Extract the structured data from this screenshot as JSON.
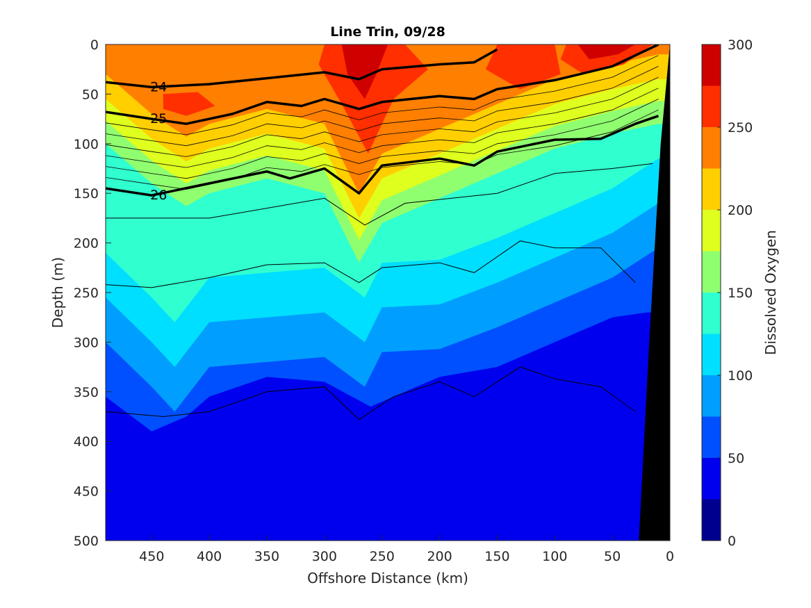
{
  "chart_data": {
    "type": "filled-contour",
    "title": "Line Trin, 09/28",
    "xlabel": "Offshore Distance (km)",
    "ylabel": "Depth (m)",
    "colorbar_label": "Dissolved Oxygen",
    "x_range": [
      490,
      0
    ],
    "x_direction": "reversed",
    "y_range": [
      0,
      500
    ],
    "y_direction": "reversed (depth increases downward)",
    "x_ticks": [
      "450",
      "400",
      "350",
      "300",
      "250",
      "200",
      "150",
      "100",
      "50",
      "0"
    ],
    "y_ticks": [
      "0",
      "50",
      "100",
      "150",
      "200",
      "250",
      "300",
      "350",
      "400",
      "450",
      "500"
    ],
    "colorbar_ticks": [
      "0",
      "50",
      "100",
      "150",
      "200",
      "250",
      "300"
    ],
    "colorbar_range": [
      0,
      300
    ],
    "levels": [
      0,
      25,
      50,
      75,
      100,
      125,
      150,
      175,
      200,
      225,
      250,
      275,
      300
    ],
    "level_colors": [
      "#00008f",
      "#0000ef",
      "#0050ff",
      "#009fff",
      "#00dfff",
      "#30ffcf",
      "#8fff70",
      "#dfff1f",
      "#ffcf00",
      "#ff7f00",
      "#ff2f00",
      "#cf0000"
    ],
    "oxygen_depth_of_200": [
      {
        "x": 490,
        "depth": 55
      },
      {
        "x": 450,
        "depth": 95
      },
      {
        "x": 420,
        "depth": 118
      },
      {
        "x": 400,
        "depth": 105
      },
      {
        "x": 350,
        "depth": 90
      },
      {
        "x": 300,
        "depth": 105
      },
      {
        "x": 270,
        "depth": 175
      },
      {
        "x": 250,
        "depth": 135
      },
      {
        "x": 200,
        "depth": 110
      },
      {
        "x": 150,
        "depth": 85
      },
      {
        "x": 100,
        "depth": 60
      },
      {
        "x": 50,
        "depth": 45
      },
      {
        "x": 10,
        "depth": 35
      }
    ],
    "oxygen_depth_of_100": [
      {
        "x": 490,
        "depth": 255
      },
      {
        "x": 450,
        "depth": 300
      },
      {
        "x": 430,
        "depth": 325
      },
      {
        "x": 400,
        "depth": 280
      },
      {
        "x": 350,
        "depth": 275
      },
      {
        "x": 300,
        "depth": 270
      },
      {
        "x": 265,
        "depth": 300
      },
      {
        "x": 250,
        "depth": 265
      },
      {
        "x": 200,
        "depth": 262
      },
      {
        "x": 150,
        "depth": 240
      },
      {
        "x": 100,
        "depth": 215
      },
      {
        "x": 50,
        "depth": 190
      },
      {
        "x": 10,
        "depth": 160
      }
    ],
    "oxygen_depth_of_50": [
      {
        "x": 490,
        "depth": 355
      },
      {
        "x": 450,
        "depth": 390
      },
      {
        "x": 420,
        "depth": 375
      },
      {
        "x": 400,
        "depth": 355
      },
      {
        "x": 350,
        "depth": 335
      },
      {
        "x": 300,
        "depth": 340
      },
      {
        "x": 260,
        "depth": 365
      },
      {
        "x": 200,
        "depth": 335
      },
      {
        "x": 150,
        "depth": 325
      },
      {
        "x": 100,
        "depth": 300
      },
      {
        "x": 50,
        "depth": 275
      },
      {
        "x": 20,
        "depth": 270
      }
    ],
    "density_isopycnals_labeled": [
      {
        "label": "24",
        "points": [
          {
            "x": 490,
            "depth": 38
          },
          {
            "x": 450,
            "depth": 43
          },
          {
            "x": 400,
            "depth": 40
          },
          {
            "x": 350,
            "depth": 34
          },
          {
            "x": 300,
            "depth": 28
          },
          {
            "x": 270,
            "depth": 35
          },
          {
            "x": 250,
            "depth": 25
          },
          {
            "x": 200,
            "depth": 20
          },
          {
            "x": 170,
            "depth": 18
          },
          {
            "x": 150,
            "depth": 5
          }
        ]
      },
      {
        "label": "25",
        "points": [
          {
            "x": 490,
            "depth": 68
          },
          {
            "x": 450,
            "depth": 75
          },
          {
            "x": 420,
            "depth": 80
          },
          {
            "x": 380,
            "depth": 70
          },
          {
            "x": 350,
            "depth": 58
          },
          {
            "x": 320,
            "depth": 62
          },
          {
            "x": 300,
            "depth": 55
          },
          {
            "x": 270,
            "depth": 65
          },
          {
            "x": 250,
            "depth": 58
          },
          {
            "x": 200,
            "depth": 52
          },
          {
            "x": 170,
            "depth": 55
          },
          {
            "x": 150,
            "depth": 45
          },
          {
            "x": 100,
            "depth": 36
          },
          {
            "x": 50,
            "depth": 22
          },
          {
            "x": 10,
            "depth": 0
          }
        ]
      },
      {
        "label": "26",
        "points": [
          {
            "x": 490,
            "depth": 145
          },
          {
            "x": 450,
            "depth": 152
          },
          {
            "x": 400,
            "depth": 140
          },
          {
            "x": 350,
            "depth": 128
          },
          {
            "x": 330,
            "depth": 135
          },
          {
            "x": 300,
            "depth": 125
          },
          {
            "x": 270,
            "depth": 150
          },
          {
            "x": 250,
            "depth": 122
          },
          {
            "x": 200,
            "depth": 115
          },
          {
            "x": 170,
            "depth": 122
          },
          {
            "x": 150,
            "depth": 108
          },
          {
            "x": 100,
            "depth": 96
          },
          {
            "x": 60,
            "depth": 95
          },
          {
            "x": 30,
            "depth": 80
          },
          {
            "x": 10,
            "depth": 72
          }
        ]
      }
    ],
    "density_isopycnals_thin": [
      [
        {
          "x": 490,
          "depth": 175
        },
        {
          "x": 400,
          "depth": 175
        },
        {
          "x": 350,
          "depth": 165
        },
        {
          "x": 300,
          "depth": 155
        },
        {
          "x": 265,
          "depth": 182
        },
        {
          "x": 230,
          "depth": 160
        },
        {
          "x": 150,
          "depth": 150
        },
        {
          "x": 100,
          "depth": 130
        },
        {
          "x": 50,
          "depth": 125
        },
        {
          "x": 15,
          "depth": 120
        }
      ],
      [
        {
          "x": 490,
          "depth": 242
        },
        {
          "x": 450,
          "depth": 245
        },
        {
          "x": 400,
          "depth": 235
        },
        {
          "x": 350,
          "depth": 222
        },
        {
          "x": 300,
          "depth": 220
        },
        {
          "x": 270,
          "depth": 240
        },
        {
          "x": 250,
          "depth": 225
        },
        {
          "x": 200,
          "depth": 220
        },
        {
          "x": 170,
          "depth": 230
        },
        {
          "x": 130,
          "depth": 198
        },
        {
          "x": 100,
          "depth": 205
        },
        {
          "x": 60,
          "depth": 205
        },
        {
          "x": 30,
          "depth": 240
        }
      ],
      [
        {
          "x": 490,
          "depth": 370
        },
        {
          "x": 440,
          "depth": 375
        },
        {
          "x": 400,
          "depth": 370
        },
        {
          "x": 350,
          "depth": 350
        },
        {
          "x": 300,
          "depth": 345
        },
        {
          "x": 270,
          "depth": 378
        },
        {
          "x": 240,
          "depth": 355
        },
        {
          "x": 200,
          "depth": 340
        },
        {
          "x": 170,
          "depth": 355
        },
        {
          "x": 130,
          "depth": 325
        },
        {
          "x": 100,
          "depth": 337
        },
        {
          "x": 60,
          "depth": 345
        },
        {
          "x": 30,
          "depth": 370
        }
      ]
    ],
    "bottom_topography_x_at_depth": [
      {
        "depth": 0,
        "x": 0
      },
      {
        "depth": 100,
        "x": 8
      },
      {
        "depth": 300,
        "x": 18
      },
      {
        "depth": 500,
        "x": 27
      }
    ],
    "grid": false,
    "colorbar_position": "right"
  }
}
